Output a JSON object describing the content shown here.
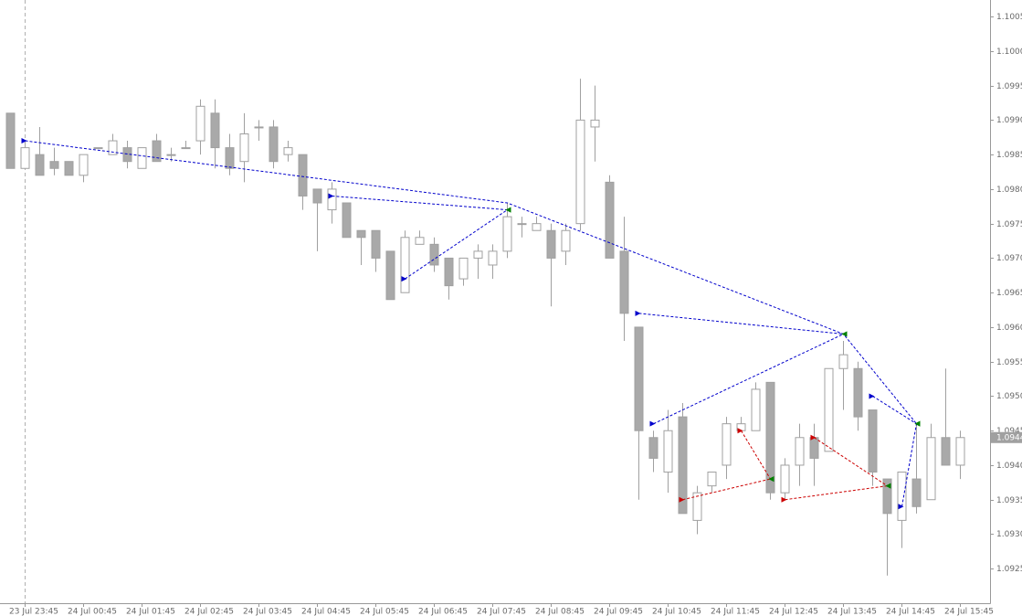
{
  "chart_data": {
    "type": "candlestick",
    "categories": [
      null,
      "23 Jul 23:45",
      null,
      null,
      null,
      "24 Jul 00:45",
      null,
      null,
      null,
      "24 Jul 01:45",
      null,
      null,
      null,
      "24 Jul 02:45",
      null,
      null,
      null,
      "24 Jul 03:45",
      null,
      null,
      null,
      "24 Jul 04:45",
      null,
      null,
      null,
      "24 Jul 05:45",
      null,
      null,
      null,
      "24 Jul 06:45",
      null,
      null,
      null,
      "24 Jul 07:45",
      null,
      null,
      null,
      "24 Jul 08:45",
      null,
      null,
      null,
      "24 Jul 09:45",
      null,
      null,
      null,
      "24 Jul 10:45",
      null,
      null,
      null,
      "24 Jul 11:45",
      null,
      null,
      null,
      "24 Jul 12:45",
      null,
      null,
      null,
      "24 Jul 13:45",
      null,
      null,
      null,
      "24 Jul 14:45",
      null,
      null,
      null,
      "24 Jul 15:45"
    ],
    "open": [
      1.0991,
      1.0983,
      1.0985,
      1.0984,
      1.0984,
      1.0982,
      1.0986,
      1.0985,
      1.0986,
      1.0983,
      1.0987,
      1.0985,
      1.0986,
      1.0987,
      1.0991,
      1.0986,
      1.0984,
      1.0989,
      1.0989,
      1.0985,
      1.0985,
      1.098,
      1.0977,
      1.0978,
      1.0974,
      1.0974,
      1.0971,
      1.0965,
      1.0972,
      1.0972,
      1.097,
      1.0967,
      1.097,
      1.0969,
      1.0971,
      1.0975,
      1.0974,
      1.0974,
      1.0971,
      1.0975,
      1.0989,
      1.0981,
      1.0971,
      1.096,
      1.0944,
      1.0939,
      1.0947,
      1.0932,
      1.0937,
      1.094,
      1.0945,
      1.0945,
      1.0952,
      1.0936,
      1.094,
      1.0944,
      1.0942,
      1.0954,
      1.0954,
      1.0948,
      1.0938,
      1.0932,
      1.0938,
      1.0935,
      1.0944,
      1.094
    ],
    "high": [
      1.0991,
      1.0987,
      1.0989,
      1.0986,
      1.0984,
      1.0985,
      1.0986,
      1.0988,
      1.0987,
      1.0986,
      1.0988,
      1.0986,
      1.0987,
      1.0993,
      1.0993,
      1.0988,
      1.0991,
      1.099,
      1.099,
      1.0987,
      1.0985,
      1.098,
      1.0981,
      1.0978,
      1.0974,
      1.0974,
      1.0971,
      1.0974,
      1.0974,
      1.0973,
      1.097,
      1.097,
      1.0972,
      1.0972,
      1.0978,
      1.0976,
      1.0976,
      1.0975,
      1.0975,
      1.0996,
      1.0995,
      1.0982,
      1.0976,
      1.096,
      1.0945,
      1.0948,
      1.0949,
      1.0937,
      1.0939,
      1.0947,
      1.0947,
      1.0952,
      1.0952,
      1.0941,
      1.0946,
      1.0946,
      1.0954,
      1.0958,
      1.0955,
      1.0948,
      1.0938,
      1.0939,
      1.0946,
      1.0946,
      1.0954,
      1.0945
    ],
    "low": [
      1.0983,
      1.0983,
      1.0982,
      1.0982,
      1.0982,
      1.0981,
      1.0986,
      1.0985,
      1.0983,
      1.0983,
      1.0984,
      1.0984,
      1.0986,
      1.0985,
      1.0983,
      1.0982,
      1.0981,
      1.0987,
      1.0983,
      1.0984,
      1.0977,
      1.0971,
      1.0975,
      1.0973,
      1.0969,
      1.0968,
      1.0964,
      1.0965,
      1.0972,
      1.0968,
      1.0964,
      1.0966,
      1.0967,
      1.0967,
      1.097,
      1.0973,
      1.0974,
      1.0963,
      1.0969,
      1.0974,
      1.0984,
      1.097,
      1.0958,
      1.0935,
      1.0939,
      1.0936,
      1.0933,
      1.093,
      1.0936,
      1.0938,
      1.0945,
      1.0945,
      1.0935,
      1.0935,
      1.0937,
      1.0937,
      1.0942,
      1.0948,
      1.0945,
      1.0937,
      1.0924,
      1.0928,
      1.0933,
      1.0935,
      1.094,
      1.0938
    ],
    "close": [
      1.0983,
      1.0986,
      1.0982,
      1.0983,
      1.0982,
      1.0985,
      1.0986,
      1.0987,
      1.0984,
      1.0986,
      1.0984,
      1.0985,
      1.0986,
      1.0992,
      1.0986,
      1.0983,
      1.0988,
      1.0989,
      1.0984,
      1.0986,
      1.0979,
      1.0978,
      1.098,
      1.0973,
      1.0973,
      1.097,
      1.0964,
      1.0973,
      1.0973,
      1.0969,
      1.0966,
      1.097,
      1.0971,
      1.0971,
      1.0976,
      1.0975,
      1.0975,
      1.097,
      1.0974,
      1.099,
      1.099,
      1.097,
      1.0962,
      1.0945,
      1.0941,
      1.0945,
      1.0933,
      1.0936,
      1.0939,
      1.0946,
      1.0946,
      1.0951,
      1.0936,
      1.094,
      1.0944,
      1.0941,
      1.0954,
      1.0956,
      1.0947,
      1.0939,
      1.0933,
      1.0939,
      1.0934,
      1.0944,
      1.094,
      1.0944
    ],
    "up_color": "#ffffff",
    "down_color": "#a9a9a9",
    "wick_color": "#a0a0a0",
    "ylim": [
      1.092,
      1.10074
    ],
    "yticks": [
      1.0925,
      {
        "value": 1.093,
        "label": "1.0930"
      },
      1.0935,
      {
        "value": 1.094,
        "label": "1.0940"
      },
      1.0945,
      {
        "value": 1.095,
        "label": "1.0950"
      },
      1.0955,
      {
        "value": 1.096,
        "label": "1.0960"
      },
      1.0965,
      {
        "value": 1.097,
        "label": "1.0970"
      },
      1.0975,
      {
        "value": 1.098,
        "label": "1.0980"
      },
      1.0985,
      {
        "value": 1.099,
        "label": "1.0990"
      },
      1.0995,
      {
        "value": 1.1,
        "label": "1.1000"
      },
      1.1005
    ],
    "last_price": 1.0944,
    "end_color": "#008000",
    "overlays": [
      {
        "color": "#0000cc",
        "x": [
          1,
          34,
          57,
          62
        ],
        "values": [
          1.0987,
          1.0978,
          1.0959,
          1.0946
        ]
      },
      {
        "color": "#0000cc",
        "x": [
          22,
          34
        ],
        "values": [
          1.0979,
          1.0977
        ]
      },
      {
        "color": "#0000cc",
        "x": [
          27,
          34
        ],
        "values": [
          1.0967,
          1.0977
        ]
      },
      {
        "color": "#0000cc",
        "x": [
          43,
          57
        ],
        "values": [
          1.0962,
          1.0959
        ]
      },
      {
        "color": "#0000cc",
        "x": [
          44,
          57
        ],
        "values": [
          1.0946,
          1.0959
        ]
      },
      {
        "color": "#0000cc",
        "x": [
          59,
          62
        ],
        "values": [
          1.095,
          1.0946
        ]
      },
      {
        "color": "#0000cc",
        "x": [
          61,
          62
        ],
        "values": [
          1.0934,
          1.0946
        ]
      },
      {
        "color": "#cc0000",
        "x": [
          46,
          52
        ],
        "values": [
          1.0935,
          1.0938
        ]
      },
      {
        "color": "#cc0000",
        "x": [
          50,
          52
        ],
        "values": [
          1.0945,
          1.0938
        ]
      },
      {
        "color": "#cc0000",
        "x": [
          53,
          60
        ],
        "values": [
          1.0935,
          1.0937
        ]
      },
      {
        "color": "#cc0000",
        "x": [
          55,
          60
        ],
        "values": [
          1.0944,
          1.0937
        ]
      }
    ]
  }
}
